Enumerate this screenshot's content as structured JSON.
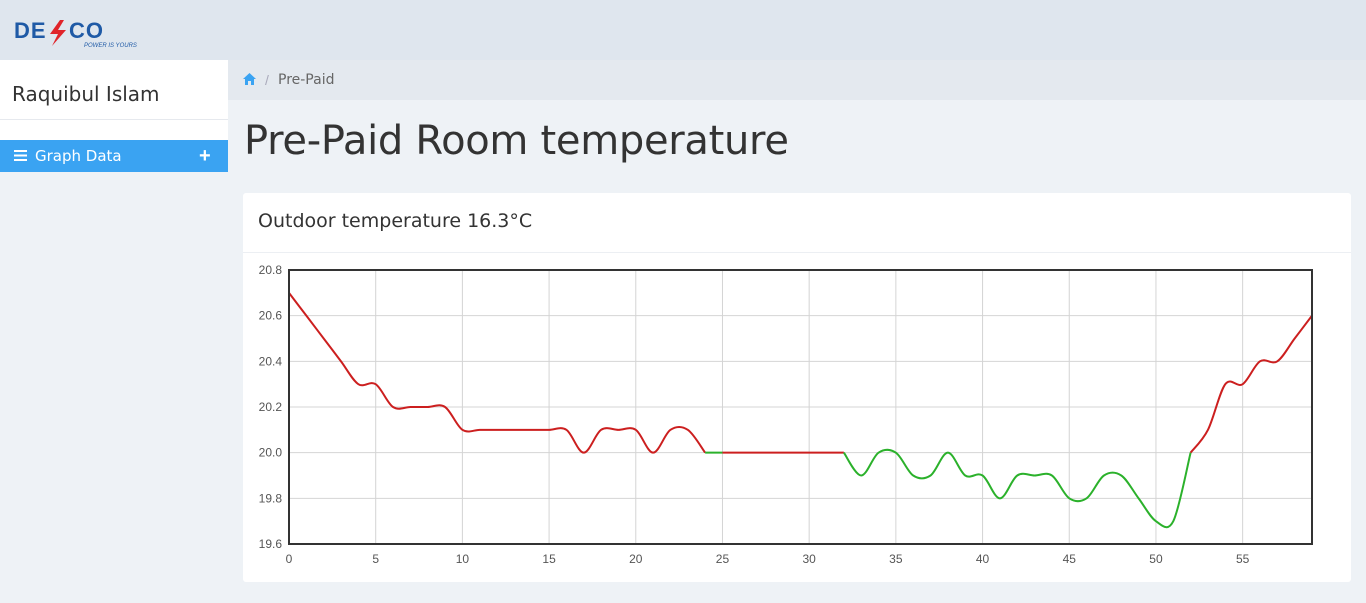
{
  "header": {
    "logo_text": "DESCO",
    "logo_tagline": "POWER IS YOURS"
  },
  "sidebar": {
    "user_name": "Raquibul Islam",
    "items": [
      {
        "label": "Graph Data",
        "icon": "bars-icon",
        "action_icon": "plus-icon"
      }
    ]
  },
  "breadcrumb": {
    "home_icon": "home-icon",
    "separator": "/",
    "current": "Pre-Paid"
  },
  "page": {
    "title": "Pre-Paid Room temperature"
  },
  "card": {
    "title": "Outdoor temperature 16.3°C"
  },
  "colors": {
    "accent": "#3aa3f2",
    "line_hot": "#cc1f1f",
    "line_normal": "#2bb12b",
    "logo_blue": "#1f5aa6",
    "logo_red": "#e0242a"
  },
  "chart_data": {
    "type": "line",
    "title": "",
    "xlabel": "",
    "ylabel": "",
    "xlim": [
      0,
      59
    ],
    "ylim": [
      19.6,
      20.8
    ],
    "x_ticks": [
      0,
      5,
      10,
      15,
      20,
      25,
      30,
      35,
      40,
      45,
      50,
      55
    ],
    "y_ticks": [
      19.6,
      19.8,
      20.0,
      20.2,
      20.4,
      20.6,
      20.8
    ],
    "y_tick_labels": [
      "19.6",
      "19.8",
      "20.0",
      "20.2",
      "20.4",
      "20.6",
      "20.8"
    ],
    "grid": true,
    "x": [
      0,
      1,
      2,
      3,
      4,
      5,
      6,
      7,
      8,
      9,
      10,
      11,
      12,
      13,
      14,
      15,
      16,
      17,
      18,
      19,
      20,
      21,
      22,
      23,
      24,
      25,
      26,
      27,
      28,
      29,
      30,
      31,
      32,
      33,
      34,
      35,
      36,
      37,
      38,
      39,
      40,
      41,
      42,
      43,
      44,
      45,
      46,
      47,
      48,
      49,
      50,
      51,
      52,
      53,
      54,
      55,
      56,
      57,
      58,
      59
    ],
    "y": [
      20.7,
      20.6,
      20.5,
      20.4,
      20.3,
      20.3,
      20.2,
      20.2,
      20.2,
      20.2,
      20.1,
      20.1,
      20.1,
      20.1,
      20.1,
      20.1,
      20.1,
      20.0,
      20.1,
      20.1,
      20.1,
      20.0,
      20.1,
      20.1,
      20.0,
      20.0,
      20.0,
      20.0,
      20.0,
      20.0,
      20.0,
      20.0,
      20.0,
      19.9,
      20.0,
      20.0,
      19.9,
      19.9,
      20.0,
      19.9,
      19.9,
      19.8,
      19.9,
      19.9,
      19.9,
      19.8,
      19.8,
      19.9,
      19.9,
      19.8,
      19.7,
      19.7,
      20.0,
      20.1,
      20.3,
      20.3,
      20.4,
      20.4,
      20.5,
      20.6
    ],
    "color_rule": "red when value differs from 20.0 baseline trend above, green when at or below 20.0 after minute 24"
  }
}
